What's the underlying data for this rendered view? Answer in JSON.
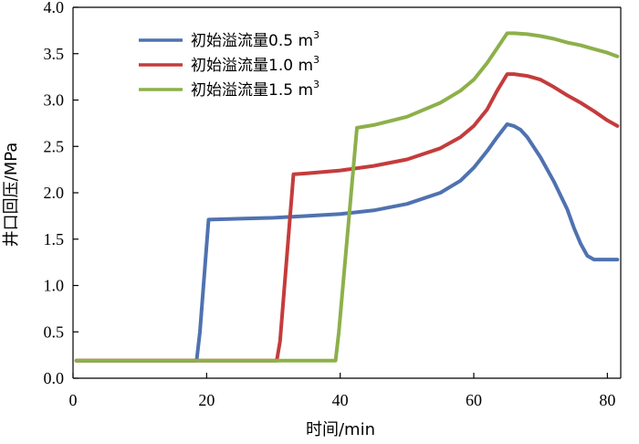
{
  "chart_data": {
    "type": "line",
    "xlabel": "时间/min",
    "ylabel": "井口回压/MPa",
    "xlim": [
      0,
      82
    ],
    "ylim": [
      0,
      4.0
    ],
    "x_ticks": [
      "0",
      "20",
      "40",
      "60",
      "80"
    ],
    "y_ticks": [
      "0.0",
      "0.5",
      "1.0",
      "1.5",
      "2.0",
      "2.5",
      "3.0",
      "3.5",
      "4.0"
    ],
    "grid": false,
    "legend_position": "top-left",
    "series": [
      {
        "name": "初始溢流量0.5 m",
        "superscript": "3",
        "color": "#4f72b0",
        "x": [
          0.5,
          10,
          18.5,
          19.0,
          20.3,
          25,
          30,
          35,
          40,
          45,
          50,
          55,
          58,
          60,
          62,
          63.5,
          65,
          66,
          67,
          68,
          70,
          72,
          74,
          75,
          76,
          77,
          78,
          80,
          81.5
        ],
        "y": [
          0.19,
          0.19,
          0.19,
          0.5,
          1.71,
          1.72,
          1.73,
          1.75,
          1.77,
          1.81,
          1.88,
          2.0,
          2.13,
          2.27,
          2.45,
          2.6,
          2.74,
          2.72,
          2.68,
          2.6,
          2.38,
          2.12,
          1.82,
          1.62,
          1.45,
          1.32,
          1.28,
          1.28,
          1.28
        ]
      },
      {
        "name": "初始溢流量1.0 m",
        "superscript": "3",
        "color": "#c43c3c",
        "x": [
          0.5,
          10,
          20,
          30.5,
          31.0,
          33.0,
          35,
          40,
          45,
          50,
          55,
          58,
          60,
          62,
          63.5,
          65,
          66,
          68,
          70,
          72,
          74,
          76,
          78,
          80,
          81.5
        ],
        "y": [
          0.19,
          0.19,
          0.19,
          0.19,
          0.4,
          2.2,
          2.21,
          2.24,
          2.29,
          2.36,
          2.48,
          2.6,
          2.72,
          2.9,
          3.1,
          3.28,
          3.28,
          3.26,
          3.22,
          3.14,
          3.05,
          2.97,
          2.88,
          2.78,
          2.72
        ]
      },
      {
        "name": "初始溢流量1.5 m",
        "superscript": "3",
        "color": "#8db04a",
        "x": [
          0.5,
          10,
          20,
          30,
          39.3,
          39.8,
          42.5,
          45,
          50,
          55,
          58,
          60,
          62,
          63.5,
          65,
          66,
          68,
          70,
          72,
          74,
          76,
          78,
          80,
          81.5
        ],
        "y": [
          0.19,
          0.19,
          0.19,
          0.19,
          0.19,
          0.5,
          2.7,
          2.73,
          2.82,
          2.97,
          3.1,
          3.22,
          3.4,
          3.56,
          3.72,
          3.72,
          3.71,
          3.69,
          3.66,
          3.62,
          3.59,
          3.55,
          3.51,
          3.47
        ]
      }
    ]
  }
}
